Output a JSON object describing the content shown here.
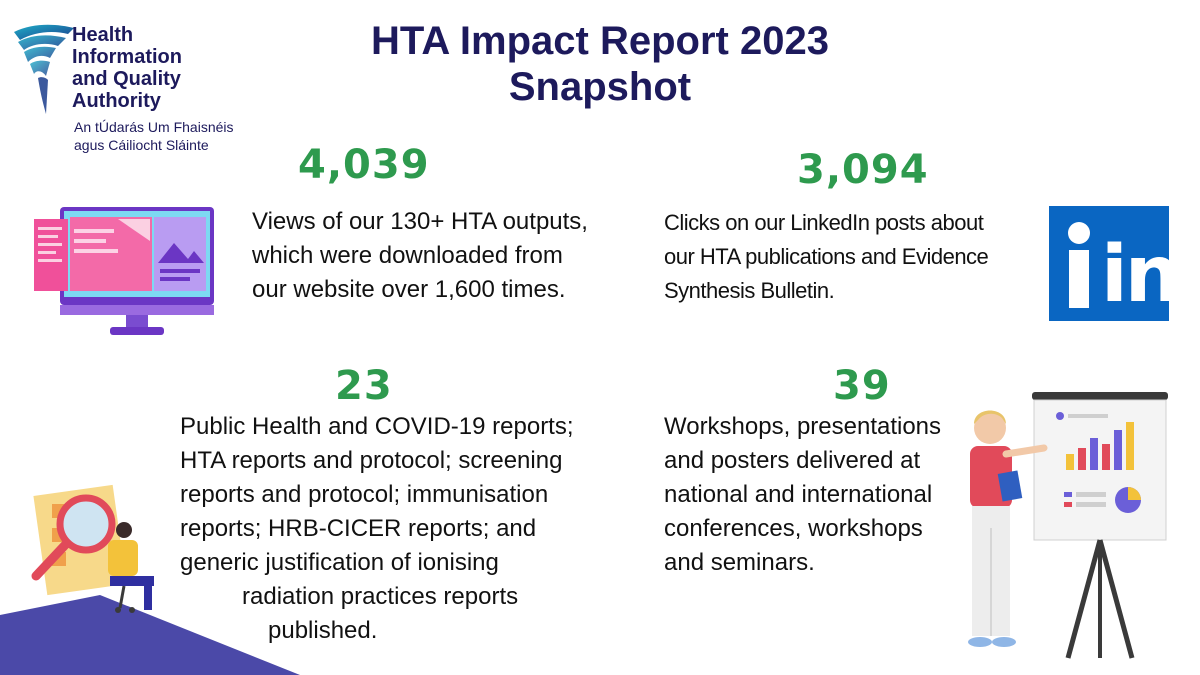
{
  "logo": {
    "lines": [
      "Health",
      "Information",
      "and Quality",
      "Authority"
    ],
    "irish_lines": [
      "An tÚdarás Um Fhaisnéis",
      "agus Cáiliocht Sláinte"
    ]
  },
  "title": {
    "line1": "HTA Impact Report 2023",
    "line2": "Snapshot"
  },
  "stats": [
    {
      "value": "4,039",
      "lines": [
        "Views of our 130+ HTA outputs,",
        "which were downloaded from",
        "our website over 1,600 times."
      ],
      "icon": "computer-monitor-icon"
    },
    {
      "value": "3,094",
      "lines": [
        "Clicks on our LinkedIn posts about",
        "our HTA publications and Evidence",
        "Synthesis Bulletin."
      ],
      "icon": "linkedin-logo-icon"
    },
    {
      "value": "23",
      "lines": [
        "Public Health and COVID-19 reports;",
        "HTA reports and protocol; screening",
        "reports and protocol; immunisation",
        "reports; HRB-CICER reports; and",
        "generic justification of ionising",
        "radiation practices reports",
        "published."
      ],
      "icon": "research-magnifier-illustration"
    },
    {
      "value": "39",
      "lines": [
        "Workshops, presentations",
        "and posters delivered at",
        "national and international",
        "conferences, workshops",
        "and seminars."
      ],
      "icon": "presenter-chart-illustration"
    }
  ],
  "linkedin": {
    "text": "in"
  },
  "colors": {
    "navy": "#1d1a5c",
    "green": "#2e9a4e",
    "linkedin_blue": "#0a66c2",
    "purple": "#8a4bd8",
    "cyan": "#5ad5f0",
    "pink": "#f0509a"
  }
}
